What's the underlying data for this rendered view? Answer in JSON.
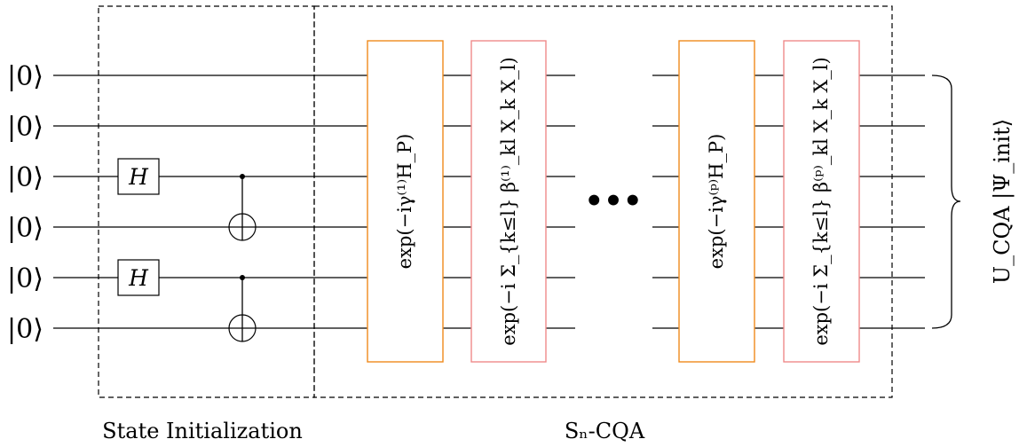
{
  "qubits": [
    {
      "ket": "|0⟩"
    },
    {
      "ket": "|0⟩"
    },
    {
      "ket": "|0⟩"
    },
    {
      "ket": "|0⟩"
    },
    {
      "ket": "|0⟩"
    },
    {
      "ket": "|0⟩"
    }
  ],
  "hadamard_label": "H",
  "sections": {
    "init_label": "State Initialization",
    "cqa_label": "Sₙ-CQA"
  },
  "blocks": {
    "phase_1": "exp(−iγ⁽¹⁾H_P)",
    "mixer_1": "exp(−i Σ_{k≤l} β⁽¹⁾_kl X_k X_l)",
    "phase_p": "exp(−iγ⁽ᵖ⁾H_P)",
    "mixer_p": "exp(−i Σ_{k≤l} β⁽ᵖ⁾_kl X_k X_l)",
    "ellipsis": "•••"
  },
  "output_label": "U_CQA |Ψ_init⟩",
  "colors": {
    "phase_block": "#f08a1c",
    "mixer_block": "#ef8a8a",
    "ink": "#000000"
  }
}
